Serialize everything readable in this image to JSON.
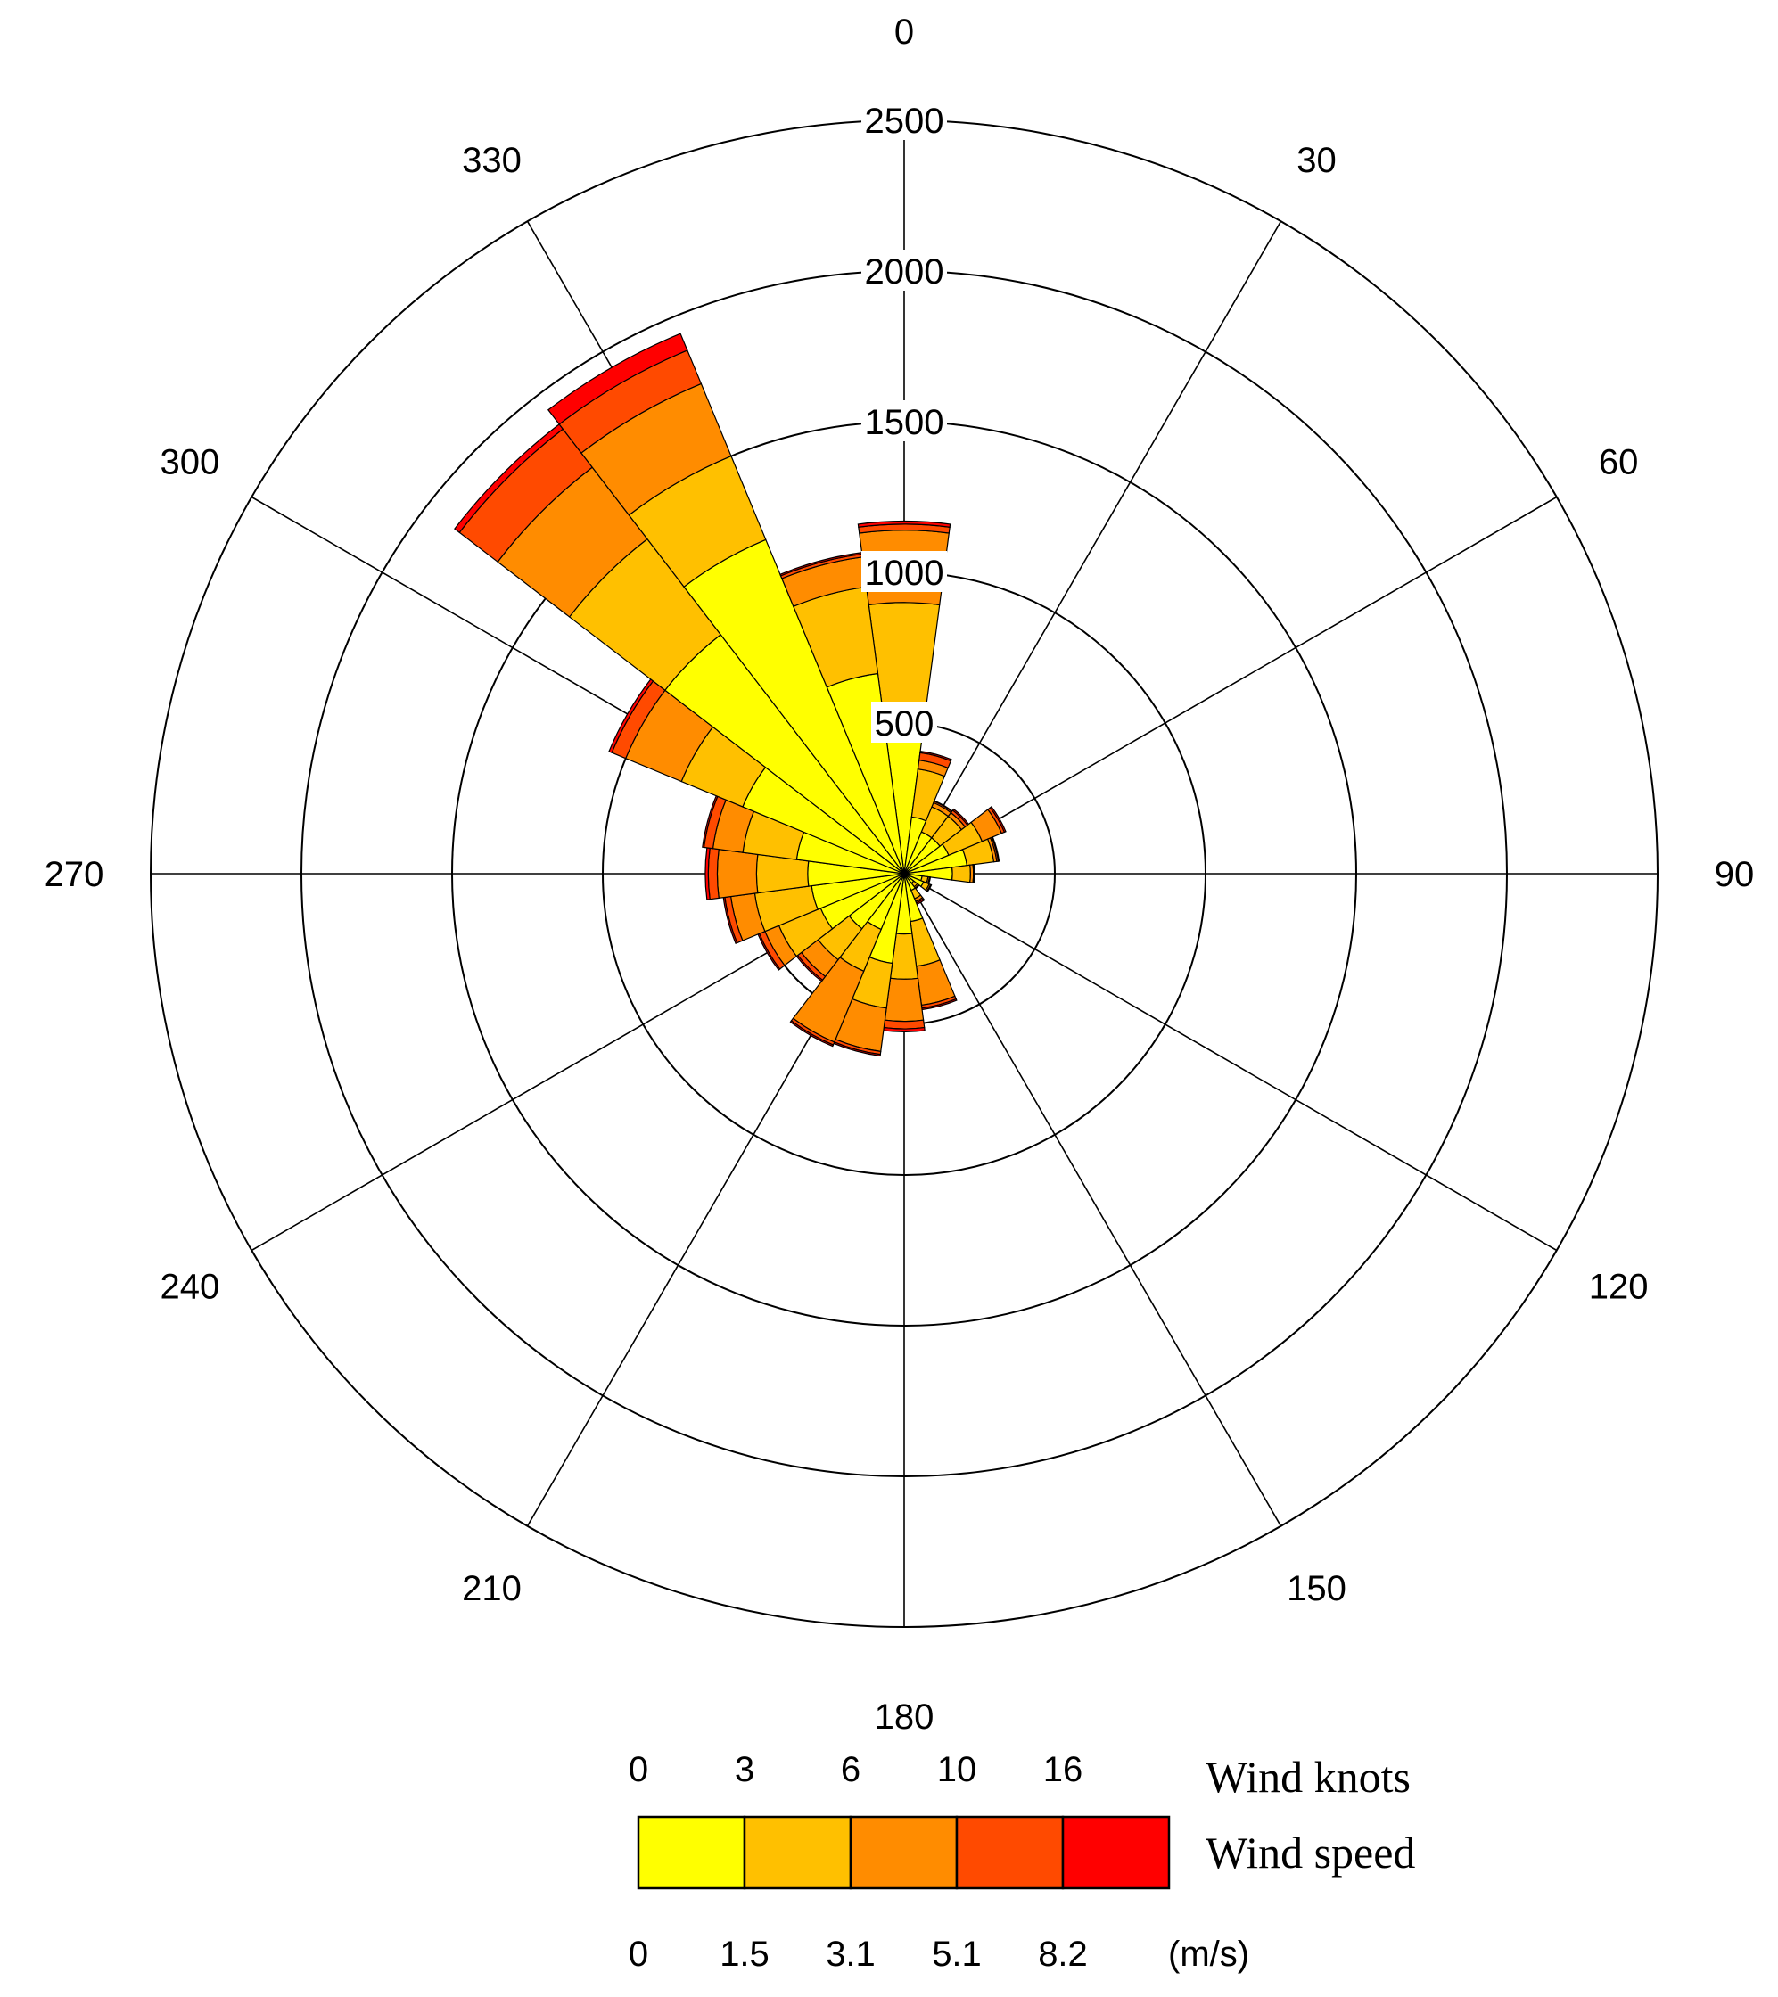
{
  "chart_data": {
    "type": "wind-rose",
    "direction_labels": [
      "0",
      "30",
      "60",
      "90",
      "120",
      "150",
      "180",
      "210",
      "240",
      "270",
      "300",
      "330"
    ],
    "radial_ticks": [
      500,
      1000,
      1500,
      2000,
      2500
    ],
    "radial_max": 2500,
    "bin_width_deg": 15,
    "speed_bins": [
      {
        "knots": "0",
        "ms": "0",
        "color": "#ffff00"
      },
      {
        "knots": "3",
        "ms": "1.5",
        "color": "#ffc000"
      },
      {
        "knots": "6",
        "ms": "3.1",
        "color": "#ff8c00"
      },
      {
        "knots": "10",
        "ms": "5.1",
        "color": "#ff4a00"
      },
      {
        "knots": "16",
        "ms": "8.2",
        "color": "#ff0000"
      }
    ],
    "legend": {
      "knots_title": "Wind knots",
      "speed_title": "Wind speed",
      "unit": "(m/s)"
    },
    "series": [
      {
        "direction": 0,
        "cumulative": [
          460,
          900,
          1140,
          1160,
          1170
        ]
      },
      {
        "direction": 15,
        "cumulative": [
          190,
          350,
          380,
          405,
          410
        ]
      },
      {
        "direction": 30,
        "cumulative": [
          150,
          240,
          255,
          260,
          262
        ]
      },
      {
        "direction": 45,
        "cumulative": [
          150,
          240,
          255,
          265,
          270
        ]
      },
      {
        "direction": 60,
        "cumulative": [
          160,
          280,
          350,
          360,
          365
        ]
      },
      {
        "direction": 75,
        "cumulative": [
          210,
          300,
          310,
          315,
          318
        ]
      },
      {
        "direction": 90,
        "cumulative": [
          160,
          220,
          230,
          233,
          235
        ]
      },
      {
        "direction": 105,
        "cumulative": [
          60,
          80,
          85,
          87,
          88
        ]
      },
      {
        "direction": 120,
        "cumulative": [
          70,
          90,
          95,
          97,
          98
        ]
      },
      {
        "direction": 135,
        "cumulative": [
          40,
          55,
          60,
          62,
          63
        ]
      },
      {
        "direction": 150,
        "cumulative": [
          60,
          90,
          100,
          105,
          110
        ]
      },
      {
        "direction": 165,
        "cumulative": [
          160,
          310,
          440,
          450,
          455
        ]
      },
      {
        "direction": 180,
        "cumulative": [
          200,
          350,
          490,
          515,
          525
        ]
      },
      {
        "direction": 195,
        "cumulative": [
          300,
          450,
          595,
          605,
          610
        ]
      },
      {
        "direction": 210,
        "cumulative": [
          200,
          350,
          605,
          615,
          620
        ]
      },
      {
        "direction": 225,
        "cumulative": [
          230,
          360,
          430,
          445,
          450
        ]
      },
      {
        "direction": 240,
        "cumulative": [
          300,
          450,
          500,
          520,
          525
        ]
      },
      {
        "direction": 255,
        "cumulative": [
          310,
          500,
          580,
          600,
          605
        ]
      },
      {
        "direction": 270,
        "cumulative": [
          320,
          490,
          620,
          650,
          660
        ]
      },
      {
        "direction": 285,
        "cumulative": [
          360,
          540,
          640,
          670,
          675
        ]
      },
      {
        "direction": 300,
        "cumulative": [
          580,
          800,
          1000,
          1050,
          1060
        ]
      },
      {
        "direction": 315,
        "cumulative": [
          1000,
          1400,
          1700,
          1860,
          1880
        ]
      },
      {
        "direction": 330,
        "cumulative": [
          1200,
          1500,
          1760,
          1880,
          1940
        ]
      },
      {
        "direction": 345,
        "cumulative": [
          670,
          960,
          1060,
          1070,
          1075
        ]
      }
    ]
  }
}
